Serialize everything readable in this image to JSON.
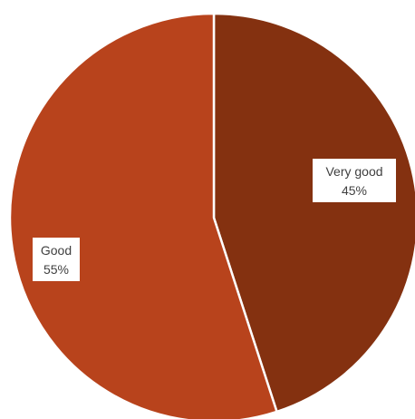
{
  "chart_data": {
    "type": "pie",
    "categories": [
      "Very good",
      "Good"
    ],
    "values": [
      45,
      55
    ],
    "unit": "%",
    "colors": [
      "#843110",
      "#b8431c"
    ],
    "labels": [
      {
        "category": "Very good",
        "percent": "45%"
      },
      {
        "category": "Good",
        "percent": "55%"
      }
    ],
    "legend": "none",
    "start_angle": "top",
    "direction": "clockwise"
  }
}
